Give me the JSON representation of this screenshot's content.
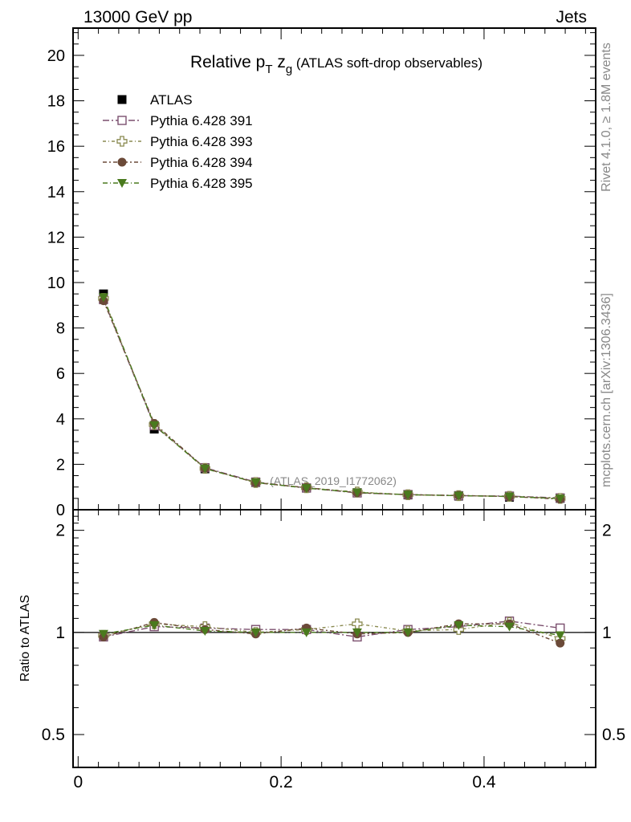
{
  "header": {
    "left": "13000 GeV pp",
    "right": "Jets"
  },
  "side": {
    "rivet": "Rivet 4.1.0, ≥ 1.8M events",
    "mcplots": "mcplots.cern.ch [arXiv:1306.3436]"
  },
  "chart_data": {
    "type": "line",
    "title": {
      "main": "Relative p",
      "sub1": "T",
      "mid": " z",
      "sub2": "g",
      "tail": " (ATLAS soft-drop observables)"
    },
    "watermark": "(ATLAS_2019_I1772062)",
    "x": [
      0.025,
      0.075,
      0.125,
      0.175,
      0.225,
      0.275,
      0.325,
      0.375,
      0.425,
      0.475
    ],
    "xlim": [
      -0.005,
      0.51
    ],
    "x_ticks": [
      "0",
      "0.2",
      "0.4"
    ],
    "main_ylim": [
      0,
      21.2
    ],
    "main_y_ticks": [
      "0",
      "2",
      "4",
      "6",
      "8",
      "10",
      "12",
      "14",
      "16",
      "18",
      "20"
    ],
    "ratio_ylabel": "Ratio to ATLAS",
    "ratio_ylim": [
      0.4,
      2.3
    ],
    "ratio_y_ticks": [
      "0.5",
      "1",
      "2"
    ],
    "series": [
      {
        "name": "ATLAS",
        "color": "#000000",
        "marker": "filled-square",
        "values": [
          9.5,
          3.55,
          1.8,
          1.2,
          0.95,
          0.75,
          0.65,
          0.6,
          0.55,
          0.5
        ],
        "ratio": [
          1,
          1,
          1,
          1,
          1,
          1,
          1,
          1,
          1,
          1
        ]
      },
      {
        "name": "Pythia 6.428 391",
        "color": "#7b4f6e",
        "marker": "open-square",
        "values": [
          9.25,
          3.7,
          1.85,
          1.22,
          0.96,
          0.74,
          0.67,
          0.62,
          0.6,
          0.52
        ],
        "ratio": [
          0.97,
          1.04,
          1.03,
          1.02,
          1.02,
          0.97,
          1.02,
          1.04,
          1.08,
          1.03
        ]
      },
      {
        "name": "Pythia 6.428 393",
        "color": "#8a8a50",
        "marker": "open-cross",
        "values": [
          9.3,
          3.75,
          1.82,
          1.2,
          0.97,
          0.78,
          0.66,
          0.62,
          0.59,
          0.5
        ],
        "ratio": [
          0.98,
          1.06,
          1.04,
          1.0,
          1.02,
          1.06,
          1.01,
          1.02,
          1.07,
          0.96
        ]
      },
      {
        "name": "Pythia 6.428 394",
        "color": "#6b4a38",
        "marker": "filled-circle",
        "values": [
          9.2,
          3.8,
          1.83,
          1.19,
          0.97,
          0.75,
          0.66,
          0.63,
          0.58,
          0.47
        ],
        "ratio": [
          0.97,
          1.07,
          1.02,
          0.99,
          1.03,
          0.99,
          1.0,
          1.06,
          1.06,
          0.93
        ]
      },
      {
        "name": "Pythia 6.428 395",
        "color": "#4a7a1e",
        "marker": "filled-triangle-down",
        "values": [
          9.35,
          3.72,
          1.81,
          1.2,
          0.95,
          0.76,
          0.66,
          0.62,
          0.58,
          0.49
        ],
        "ratio": [
          0.99,
          1.05,
          1.01,
          1.0,
          1.0,
          1.0,
          1.0,
          1.05,
          1.04,
          0.98
        ]
      }
    ]
  }
}
